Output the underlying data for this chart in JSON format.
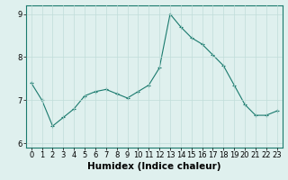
{
  "x": [
    0,
    1,
    2,
    3,
    4,
    5,
    6,
    7,
    8,
    9,
    10,
    11,
    12,
    13,
    14,
    15,
    16,
    17,
    18,
    19,
    20,
    21,
    22,
    23
  ],
  "y": [
    7.4,
    7.0,
    6.4,
    6.6,
    6.8,
    7.1,
    7.2,
    7.25,
    7.15,
    7.05,
    7.2,
    7.35,
    7.75,
    9.0,
    8.7,
    8.45,
    8.3,
    8.05,
    7.8,
    7.35,
    6.9,
    6.65,
    6.65,
    6.75
  ],
  "line_color": "#1a7a6e",
  "marker": "+",
  "marker_size": 3,
  "background_color": "#dff0ee",
  "grid_color": "#c0ddd9",
  "xlabel": "Humidex (Indice chaleur)",
  "ylabel": "",
  "xlim": [
    -0.5,
    23.5
  ],
  "ylim": [
    5.9,
    9.2
  ],
  "yticks": [
    6,
    7,
    8,
    9
  ],
  "xticks": [
    0,
    1,
    2,
    3,
    4,
    5,
    6,
    7,
    8,
    9,
    10,
    11,
    12,
    13,
    14,
    15,
    16,
    17,
    18,
    19,
    20,
    21,
    22,
    23
  ],
  "tick_fontsize": 6,
  "xlabel_fontsize": 7.5,
  "xlabel_fontweight": "bold"
}
